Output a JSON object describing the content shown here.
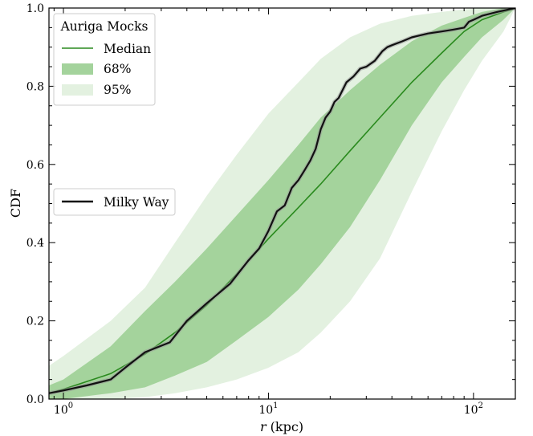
{
  "chart_data": {
    "type": "line",
    "xlabel_var": "r",
    "xlabel_unit": " (kpc)",
    "ylabel": "CDF",
    "xscale": "log",
    "xlim": [
      0.85,
      160
    ],
    "ylim": [
      0,
      1
    ],
    "xticks_major": [
      {
        "value": 1,
        "base": "10",
        "exp": "0"
      },
      {
        "value": 10,
        "base": "10",
        "exp": "1"
      },
      {
        "value": 100,
        "base": "10",
        "exp": "2"
      }
    ],
    "yticks": [
      "0.0",
      "0.2",
      "0.4",
      "0.6",
      "0.8",
      "1.0"
    ],
    "legend_mocks": {
      "title": "Auriga Mocks",
      "placement": "upper-left",
      "entries": [
        "Median",
        "68%",
        "95%"
      ]
    },
    "legend_mw": {
      "placement": "center-left",
      "entries": [
        "Milky Way"
      ]
    },
    "colors": {
      "median": "#2a8a1e",
      "band68": "#a4d39c",
      "band95": "#e3f1e0",
      "milky_way": "#111111"
    },
    "series": [
      {
        "name": "Median",
        "x": [
          0.85,
          1.0,
          1.7,
          2.5,
          3.5,
          5.0,
          7.0,
          10,
          14,
          18,
          25,
          35,
          50,
          70,
          90,
          110,
          140,
          160
        ],
        "y": [
          0.015,
          0.025,
          0.065,
          0.115,
          0.17,
          0.24,
          0.32,
          0.41,
          0.49,
          0.55,
          0.635,
          0.72,
          0.81,
          0.885,
          0.94,
          0.97,
          0.99,
          1.0
        ]
      },
      {
        "name": "68%",
        "x": [
          0.85,
          1.0,
          1.7,
          2.5,
          3.5,
          5.0,
          7.0,
          10,
          14,
          18,
          25,
          35,
          50,
          70,
          90,
          110,
          140,
          160
        ],
        "lower": [
          0.0,
          0.0,
          0.015,
          0.03,
          0.06,
          0.095,
          0.15,
          0.21,
          0.28,
          0.345,
          0.44,
          0.56,
          0.7,
          0.81,
          0.875,
          0.925,
          0.97,
          1.0
        ],
        "upper": [
          0.035,
          0.05,
          0.135,
          0.225,
          0.3,
          0.385,
          0.47,
          0.56,
          0.65,
          0.72,
          0.79,
          0.855,
          0.915,
          0.955,
          0.975,
          0.99,
          1.0,
          1.0
        ]
      },
      {
        "name": "95%",
        "x": [
          0.85,
          1.0,
          1.7,
          2.5,
          3.5,
          5.0,
          7.0,
          10,
          14,
          18,
          25,
          35,
          50,
          70,
          90,
          110,
          140,
          160
        ],
        "lower": [
          0.0,
          0.0,
          0.0,
          0.005,
          0.015,
          0.03,
          0.05,
          0.08,
          0.12,
          0.17,
          0.25,
          0.36,
          0.53,
          0.685,
          0.79,
          0.865,
          0.94,
          1.0
        ],
        "upper": [
          0.085,
          0.11,
          0.2,
          0.285,
          0.4,
          0.52,
          0.625,
          0.73,
          0.81,
          0.87,
          0.925,
          0.96,
          0.98,
          0.99,
          0.997,
          1.0,
          1.0,
          1.0
        ]
      },
      {
        "name": "Milky Way",
        "x": [
          0.85,
          1.0,
          1.3,
          1.7,
          2.0,
          2.5,
          3.3,
          4.0,
          5.0,
          6.5,
          8.0,
          9.0,
          10.0,
          11.0,
          12.0,
          13.0,
          14.0,
          15.0,
          16.0,
          17.0,
          18.0,
          19.0,
          20.0,
          21.0,
          22.0,
          24.0,
          26.0,
          28.0,
          30.0,
          33.0,
          36.0,
          38.0,
          40.0,
          45.0,
          50.0,
          60.0,
          70.0,
          80.0,
          90.0,
          95.0,
          100.0,
          110.0,
          130.0,
          160.0
        ],
        "y": [
          0.015,
          0.022,
          0.035,
          0.05,
          0.08,
          0.12,
          0.145,
          0.2,
          0.245,
          0.295,
          0.355,
          0.385,
          0.43,
          0.48,
          0.495,
          0.54,
          0.56,
          0.585,
          0.61,
          0.64,
          0.69,
          0.72,
          0.735,
          0.76,
          0.77,
          0.81,
          0.825,
          0.845,
          0.85,
          0.865,
          0.89,
          0.9,
          0.905,
          0.915,
          0.925,
          0.935,
          0.94,
          0.945,
          0.95,
          0.965,
          0.97,
          0.98,
          0.99,
          1.0
        ]
      }
    ]
  }
}
